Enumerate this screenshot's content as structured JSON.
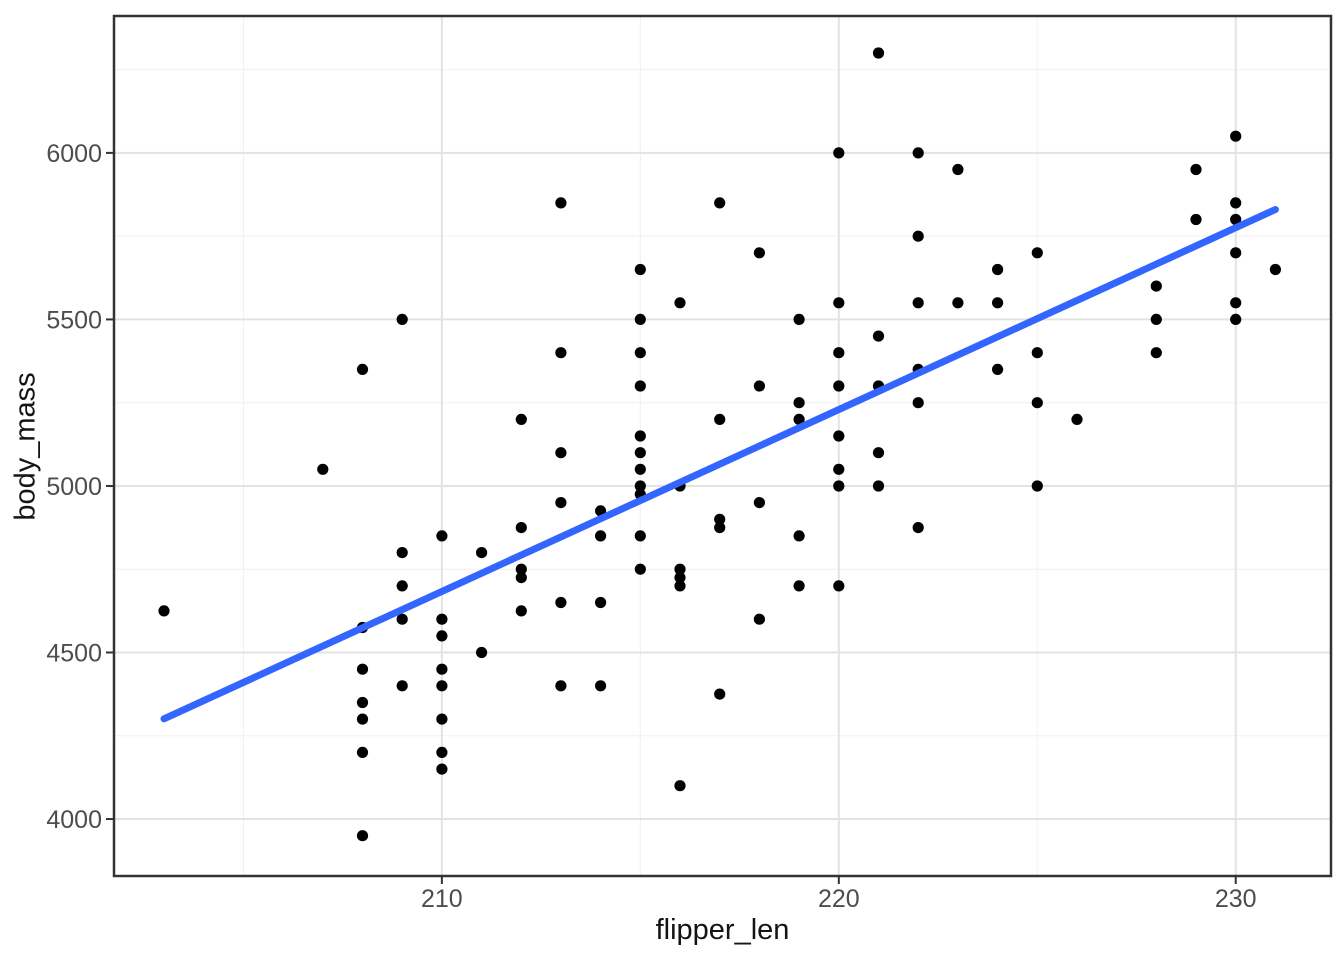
{
  "chart_data": {
    "type": "scatter",
    "title": "",
    "xlabel": "flipper_len",
    "ylabel": "body_mass",
    "x_ticks": [
      210,
      220,
      230
    ],
    "x_minor_ticks": [
      205,
      215,
      225
    ],
    "y_ticks": [
      4000,
      4500,
      5000,
      5500,
      6000
    ],
    "y_minor_ticks": [
      4250,
      4750,
      5250,
      5750,
      6250
    ],
    "xlim": [
      201.74,
      232.4
    ],
    "ylim": [
      3829,
      6411
    ],
    "grid": {
      "major_color": "#e3e3e3",
      "minor_color": "#f0f0f0",
      "major_width": 2,
      "minor_width": 1
    },
    "panel": {
      "background": "#ffffff",
      "border_color": "#333333",
      "border_width": 2.5
    },
    "ticks": {
      "color": "#333333",
      "length": 8,
      "label_color": "#4d4d4d"
    },
    "point_color": "#000000",
    "point_radius": 5.6,
    "regression_line": {
      "x1": 203,
      "y1": 4301,
      "x2": 231,
      "y2": 5830,
      "color": "#3366ff",
      "width": 7
    },
    "points": [
      [
        221,
        6300
      ],
      [
        230,
        6050
      ],
      [
        220,
        6000
      ],
      [
        222,
        6000
      ],
      [
        223,
        5950
      ],
      [
        229,
        5950
      ],
      [
        213,
        5850
      ],
      [
        217,
        5850
      ],
      [
        230,
        5850
      ],
      [
        229,
        5800
      ],
      [
        230,
        5800
      ],
      [
        222,
        5750
      ],
      [
        218,
        5700
      ],
      [
        225,
        5700
      ],
      [
        230,
        5700
      ],
      [
        215,
        5650
      ],
      [
        224,
        5650
      ],
      [
        231,
        5650
      ],
      [
        228,
        5600
      ],
      [
        216,
        5550
      ],
      [
        220,
        5550
      ],
      [
        222,
        5550
      ],
      [
        223,
        5550
      ],
      [
        224,
        5550
      ],
      [
        230,
        5550
      ],
      [
        209,
        5500
      ],
      [
        215,
        5500
      ],
      [
        219,
        5500
      ],
      [
        228,
        5500
      ],
      [
        230,
        5500
      ],
      [
        221,
        5450
      ],
      [
        213,
        5400
      ],
      [
        215,
        5400
      ],
      [
        220,
        5400
      ],
      [
        225,
        5400
      ],
      [
        228,
        5400
      ],
      [
        208,
        5350
      ],
      [
        222,
        5350
      ],
      [
        224,
        5350
      ],
      [
        215,
        5300
      ],
      [
        218,
        5300
      ],
      [
        220,
        5300
      ],
      [
        221,
        5300
      ],
      [
        219,
        5250
      ],
      [
        222,
        5250
      ],
      [
        225,
        5250
      ],
      [
        212,
        5200
      ],
      [
        217,
        5200
      ],
      [
        219,
        5200
      ],
      [
        226,
        5200
      ],
      [
        215,
        5150
      ],
      [
        220,
        5150
      ],
      [
        213,
        5100
      ],
      [
        215,
        5100
      ],
      [
        221,
        5100
      ],
      [
        207,
        5050
      ],
      [
        215,
        5050
      ],
      [
        220,
        5050
      ],
      [
        215,
        5000
      ],
      [
        216,
        5000
      ],
      [
        220,
        5000
      ],
      [
        221,
        5000
      ],
      [
        225,
        5000
      ],
      [
        215,
        4975
      ],
      [
        213,
        4950
      ],
      [
        218,
        4950
      ],
      [
        214,
        4925
      ],
      [
        217,
        4900
      ],
      [
        212,
        4875
      ],
      [
        217,
        4875
      ],
      [
        222,
        4875
      ],
      [
        210,
        4850
      ],
      [
        214,
        4850
      ],
      [
        215,
        4850
      ],
      [
        219,
        4850
      ],
      [
        209,
        4800
      ],
      [
        211,
        4800
      ],
      [
        212,
        4750
      ],
      [
        215,
        4750
      ],
      [
        216,
        4750
      ],
      [
        212,
        4725
      ],
      [
        216,
        4725
      ],
      [
        209,
        4700
      ],
      [
        216,
        4700
      ],
      [
        219,
        4700
      ],
      [
        220,
        4700
      ],
      [
        203,
        4625
      ],
      [
        212,
        4625
      ],
      [
        213,
        4650
      ],
      [
        214,
        4650
      ],
      [
        209,
        4600
      ],
      [
        210,
        4600
      ],
      [
        218,
        4600
      ],
      [
        208,
        4575
      ],
      [
        210,
        4550
      ],
      [
        211,
        4500
      ],
      [
        208,
        4450
      ],
      [
        210,
        4450
      ],
      [
        209,
        4400
      ],
      [
        210,
        4400
      ],
      [
        213,
        4400
      ],
      [
        214,
        4400
      ],
      [
        217,
        4375
      ],
      [
        208,
        4350
      ],
      [
        208,
        4300
      ],
      [
        210,
        4300
      ],
      [
        208,
        4200
      ],
      [
        210,
        4200
      ],
      [
        210,
        4150
      ],
      [
        216,
        4100
      ],
      [
        208,
        3950
      ]
    ]
  }
}
